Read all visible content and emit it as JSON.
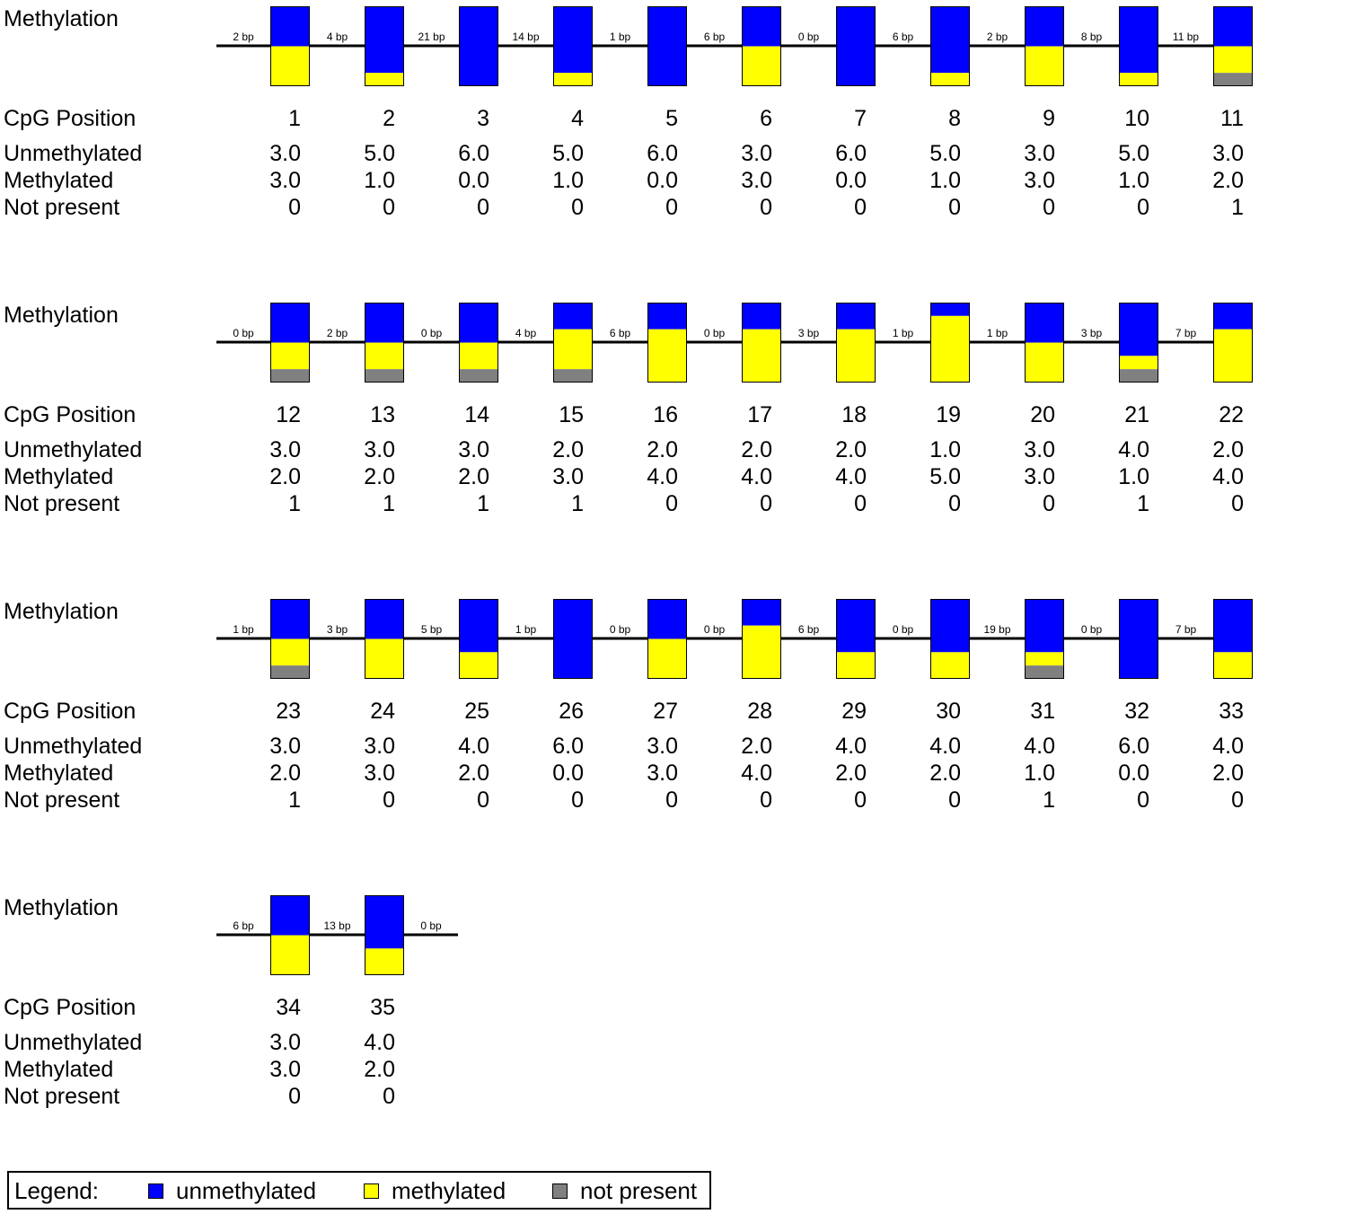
{
  "chart_data": {
    "type": "bar",
    "stacked": true,
    "orientation": "vertical",
    "row_labels": {
      "chart": "Methylation",
      "position": "CpG Position",
      "unmethylated": "Unmethylated",
      "methylated": "Methylated",
      "not_present": "Not present"
    },
    "colors": {
      "unmethylated": "#0000ff",
      "methylated": "#ffff00",
      "not_present": "#808080"
    },
    "positions": [
      1,
      2,
      3,
      4,
      5,
      6,
      7,
      8,
      9,
      10,
      11,
      12,
      13,
      14,
      15,
      16,
      17,
      18,
      19,
      20,
      21,
      22,
      23,
      24,
      25,
      26,
      27,
      28,
      29,
      30,
      31,
      32,
      33,
      34,
      35
    ],
    "unmethylated": [
      "3.0",
      "5.0",
      "6.0",
      "5.0",
      "6.0",
      "3.0",
      "6.0",
      "5.0",
      "3.0",
      "5.0",
      "3.0",
      "3.0",
      "3.0",
      "3.0",
      "2.0",
      "2.0",
      "2.0",
      "2.0",
      "1.0",
      "3.0",
      "4.0",
      "2.0",
      "3.0",
      "3.0",
      "4.0",
      "6.0",
      "3.0",
      "2.0",
      "4.0",
      "4.0",
      "4.0",
      "6.0",
      "4.0",
      "3.0",
      "4.0"
    ],
    "methylated": [
      "3.0",
      "1.0",
      "0.0",
      "1.0",
      "0.0",
      "3.0",
      "0.0",
      "1.0",
      "3.0",
      "1.0",
      "2.0",
      "2.0",
      "2.0",
      "2.0",
      "3.0",
      "4.0",
      "4.0",
      "4.0",
      "5.0",
      "3.0",
      "1.0",
      "4.0",
      "2.0",
      "3.0",
      "2.0",
      "0.0",
      "3.0",
      "4.0",
      "2.0",
      "2.0",
      "1.0",
      "0.0",
      "2.0",
      "3.0",
      "2.0"
    ],
    "not_present": [
      "0",
      "0",
      "0",
      "0",
      "0",
      "0",
      "0",
      "0",
      "0",
      "0",
      "1",
      "1",
      "1",
      "1",
      "1",
      "0",
      "0",
      "0",
      "0",
      "0",
      "1",
      "0",
      "1",
      "0",
      "0",
      "0",
      "0",
      "0",
      "0",
      "0",
      "1",
      "0",
      "0",
      "0",
      "0"
    ],
    "gaps": [
      [
        "2 bp",
        "4 bp",
        "21 bp",
        "14 bp",
        "1 bp",
        "6 bp",
        "0 bp",
        "6 bp",
        "2 bp",
        "8 bp",
        "11 bp"
      ],
      [
        "0 bp",
        "2 bp",
        "0 bp",
        "4 bp",
        "6 bp",
        "0 bp",
        "3 bp",
        "1 bp",
        "1 bp",
        "3 bp",
        "7 bp"
      ],
      [
        "1 bp",
        "3 bp",
        "5 bp",
        "1 bp",
        "0 bp",
        "0 bp",
        "6 bp",
        "0 bp",
        "19 bp",
        "0 bp",
        "7 bp"
      ],
      [
        "6 bp",
        "13 bp",
        "0 bp"
      ]
    ]
  },
  "legend": {
    "title": "Legend:",
    "items": [
      {
        "key": "unmethylated",
        "label": "unmethylated",
        "color": "#0000ff"
      },
      {
        "key": "methylated",
        "label": "methylated",
        "color": "#ffff00"
      },
      {
        "key": "not_present",
        "label": "not present",
        "color": "#808080"
      }
    ]
  }
}
